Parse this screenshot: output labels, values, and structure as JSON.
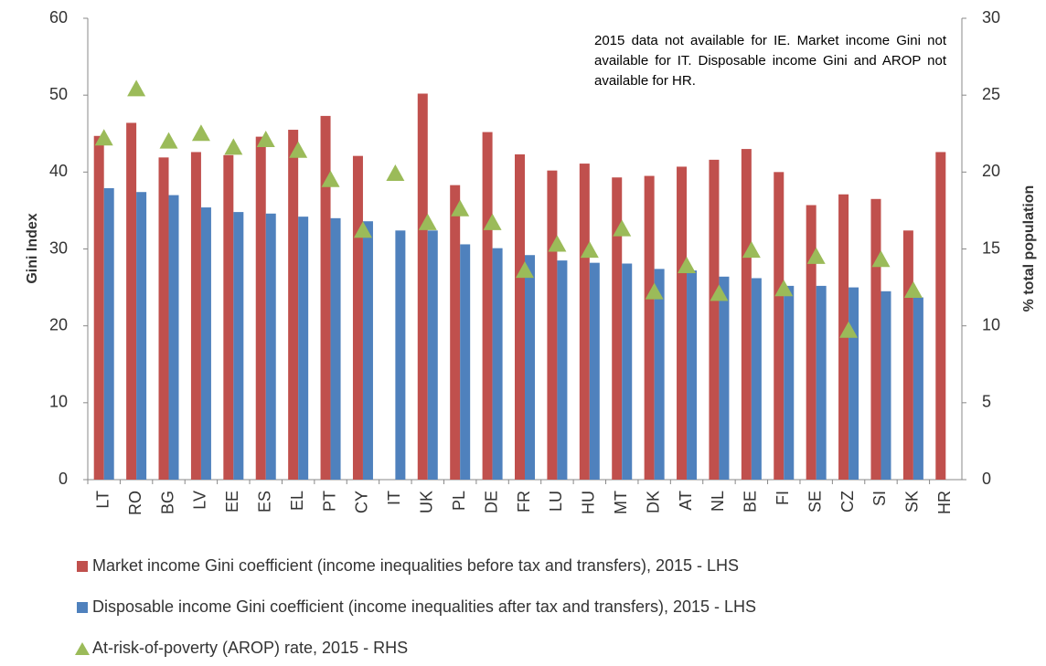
{
  "chart_data": {
    "type": "bar",
    "annotation": "2015 data not available for IE. Market income Gini not available for IT. Disposable income  Gini and AROP not available for HR.",
    "ylabel": "Gini Index",
    "y2label": "% total population",
    "categories": [
      "LT",
      "RO",
      "BG",
      "LV",
      "EE",
      "ES",
      "EL",
      "PT",
      "CY",
      "IT",
      "UK",
      "PL",
      "DE",
      "FR",
      "LU",
      "HU",
      "MT",
      "DK",
      "AT",
      "NL",
      "BE",
      "FI",
      "SE",
      "CZ",
      "SI",
      "SK",
      "HR"
    ],
    "series": [
      {
        "name": "Market income Gini coefficient (income inequalities before tax and transfers), 2015 - LHS",
        "type": "bar",
        "color": "#c0504d",
        "values": [
          44.7,
          46.4,
          41.9,
          42.6,
          42.2,
          44.6,
          45.5,
          47.3,
          42.1,
          null,
          50.2,
          38.3,
          45.2,
          42.3,
          40.2,
          41.1,
          39.3,
          39.5,
          40.7,
          41.6,
          43.0,
          40.0,
          35.7,
          37.1,
          36.5,
          32.4,
          42.6
        ]
      },
      {
        "name": "Disposable income Gini coefficient (income inequalities after tax and transfers), 2015 - LHS",
        "type": "bar",
        "color": "#4f81bd",
        "values": [
          37.9,
          37.4,
          37.0,
          35.4,
          34.8,
          34.6,
          34.2,
          34.0,
          33.6,
          32.4,
          32.4,
          30.6,
          30.1,
          29.2,
          28.5,
          28.2,
          28.1,
          27.4,
          27.2,
          26.4,
          26.2,
          25.2,
          25.2,
          25.0,
          24.5,
          23.7,
          null
        ]
      },
      {
        "name": "At-risk-of-poverty (AROP) rate, 2015 - RHS",
        "type": "scatter",
        "axis": "y2",
        "color": "#9bbb59",
        "values": [
          22.2,
          25.4,
          22.0,
          22.5,
          21.6,
          22.1,
          21.4,
          19.5,
          16.2,
          19.9,
          16.7,
          17.6,
          16.7,
          13.6,
          15.3,
          14.9,
          16.3,
          12.2,
          13.9,
          12.1,
          14.9,
          12.4,
          14.5,
          9.7,
          14.3,
          12.3,
          null
        ]
      }
    ],
    "ylim": [
      0,
      60
    ],
    "yticks": [
      0,
      10,
      20,
      30,
      40,
      50,
      60
    ],
    "y2lim": [
      0,
      30
    ],
    "y2ticks": [
      0,
      5,
      10,
      15,
      20,
      25,
      30
    ],
    "legend": "bottom"
  }
}
